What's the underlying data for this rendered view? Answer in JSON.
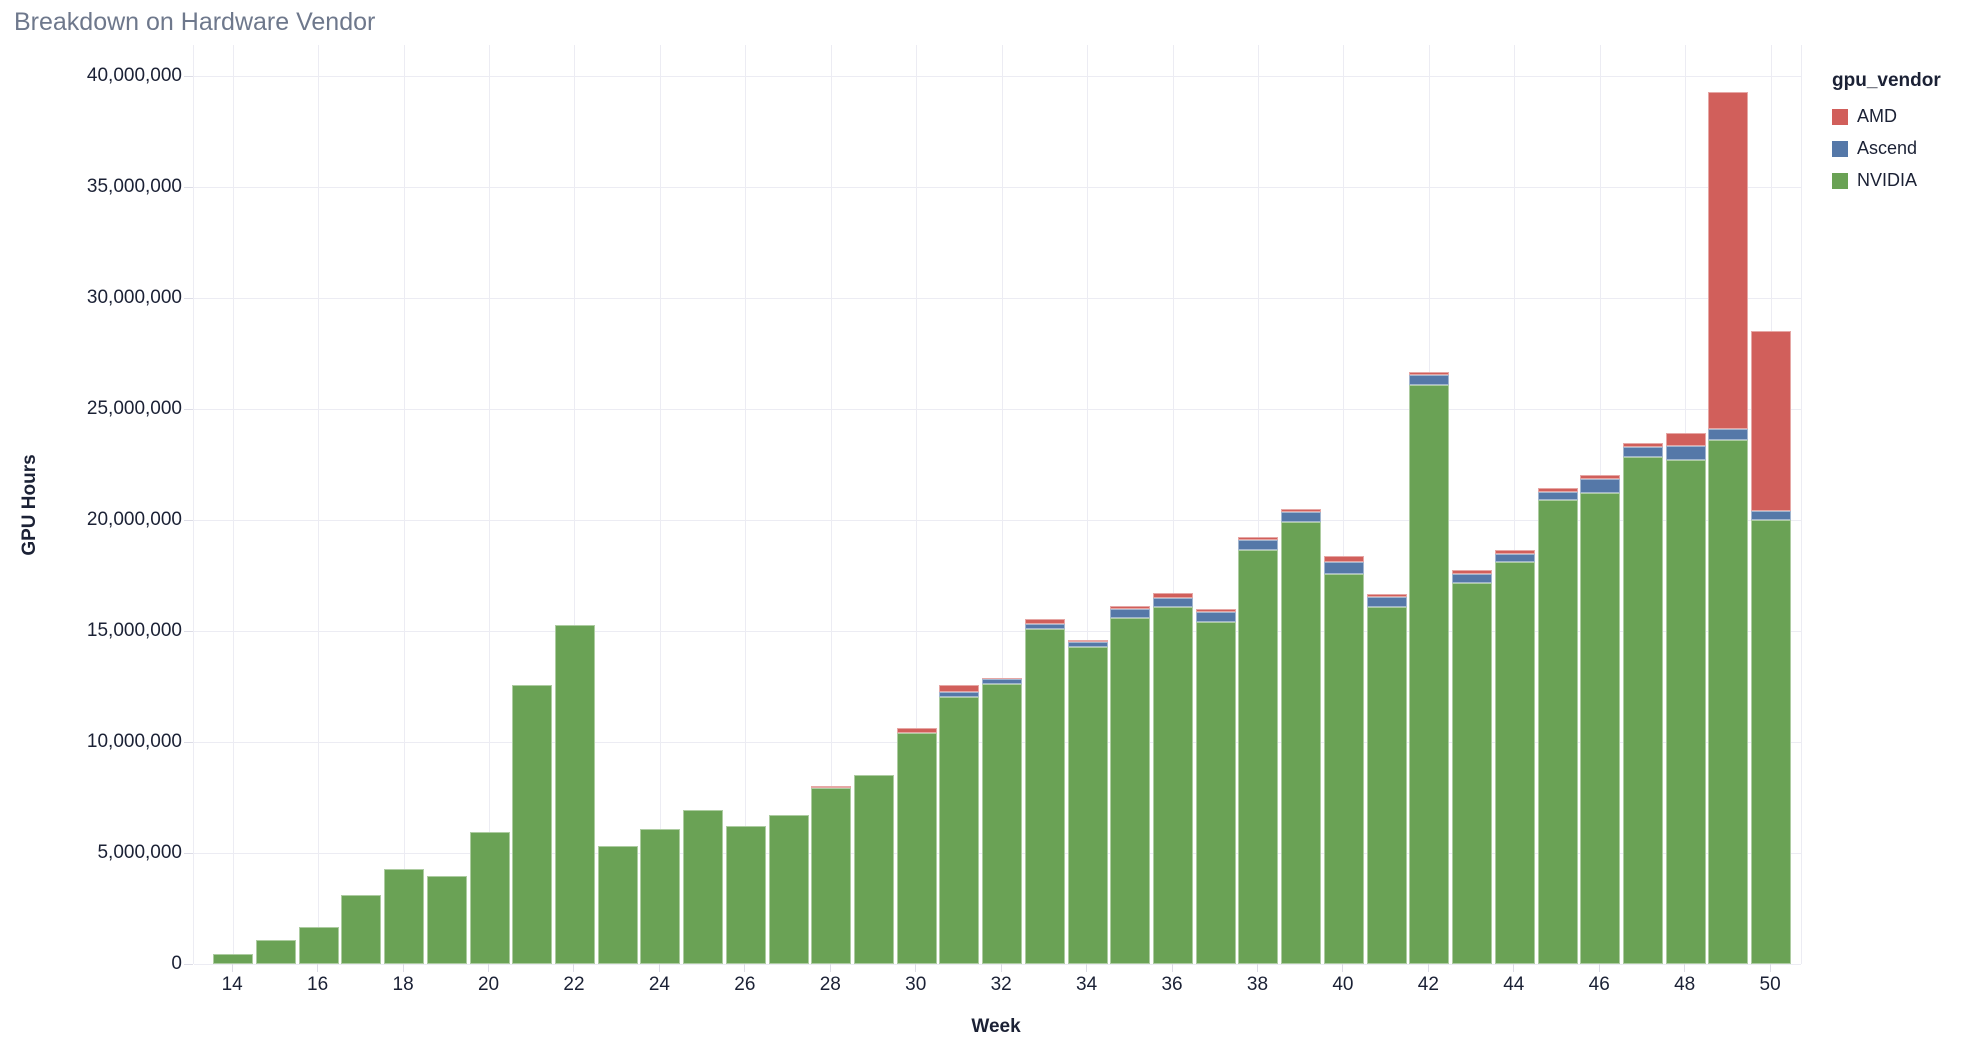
{
  "title": "Breakdown on Hardware Vendor",
  "legend": {
    "title": "gpu_vendor",
    "items": [
      {
        "label": "AMD",
        "color": "#d15f5b"
      },
      {
        "label": "Ascend",
        "color": "#5578a8"
      },
      {
        "label": "NVIDIA",
        "color": "#6aa255"
      }
    ]
  },
  "axes": {
    "y": {
      "label": "GPU Hours",
      "ticks": [
        "0",
        "5,000,000",
        "10,000,000",
        "15,000,000",
        "20,000,000",
        "25,000,000",
        "30,000,000",
        "35,000,000",
        "40,000,000"
      ],
      "tick_values": [
        0,
        5000000,
        10000000,
        15000000,
        20000000,
        25000000,
        30000000,
        35000000,
        40000000
      ]
    },
    "x": {
      "label": "Week",
      "ticks": [
        "14",
        "16",
        "18",
        "20",
        "22",
        "24",
        "26",
        "28",
        "30",
        "32",
        "34",
        "36",
        "38",
        "40",
        "42",
        "44",
        "46",
        "48",
        "50"
      ],
      "tick_values": [
        14,
        16,
        18,
        20,
        22,
        24,
        26,
        28,
        30,
        32,
        34,
        36,
        38,
        40,
        42,
        44,
        46,
        48,
        50
      ]
    }
  },
  "chart_data": {
    "type": "bar",
    "stacked": true,
    "title": "Breakdown on Hardware Vendor",
    "xlabel": "Week",
    "ylabel": "GPU Hours",
    "ylim": [
      0,
      40000000
    ],
    "grid": true,
    "legend_position": "right",
    "categories": [
      14,
      15,
      16,
      17,
      18,
      19,
      20,
      21,
      22,
      23,
      24,
      25,
      26,
      27,
      28,
      29,
      30,
      31,
      32,
      33,
      34,
      35,
      36,
      37,
      38,
      39,
      40,
      41,
      42,
      43,
      44,
      45,
      46,
      47,
      48,
      49,
      50
    ],
    "stack_order": [
      "NVIDIA",
      "Ascend",
      "AMD"
    ],
    "series": [
      {
        "name": "NVIDIA",
        "color": "#6aa255",
        "values": [
          470000,
          1090000,
          1670000,
          3090000,
          4270000,
          3970000,
          5950000,
          12550000,
          15250000,
          5330000,
          6100000,
          6950000,
          6200000,
          6700000,
          7920000,
          8530000,
          10400000,
          12050000,
          12600000,
          15100000,
          14300000,
          15600000,
          16100000,
          15400000,
          18650000,
          19900000,
          17550000,
          16100000,
          26100000,
          17150000,
          18100000,
          20900000,
          21200000,
          22850000,
          22700000,
          23600000,
          20000000
        ]
      },
      {
        "name": "Ascend",
        "color": "#5578a8",
        "values": [
          0,
          0,
          0,
          0,
          0,
          0,
          0,
          0,
          0,
          0,
          0,
          0,
          0,
          0,
          0,
          0,
          0,
          200000,
          220000,
          200000,
          200000,
          380000,
          380000,
          450000,
          450000,
          460000,
          580000,
          420000,
          430000,
          430000,
          380000,
          380000,
          650000,
          430000,
          640000,
          500000,
          400000
        ]
      },
      {
        "name": "AMD",
        "color": "#d15f5b",
        "values": [
          0,
          0,
          0,
          0,
          0,
          0,
          0,
          0,
          0,
          0,
          0,
          0,
          0,
          0,
          100000,
          0,
          220000,
          300000,
          50000,
          250000,
          100000,
          150000,
          220000,
          120000,
          150000,
          120000,
          230000,
          150000,
          120000,
          150000,
          150000,
          150000,
          180000,
          180000,
          580000,
          15200000,
          8100000
        ]
      }
    ]
  }
}
